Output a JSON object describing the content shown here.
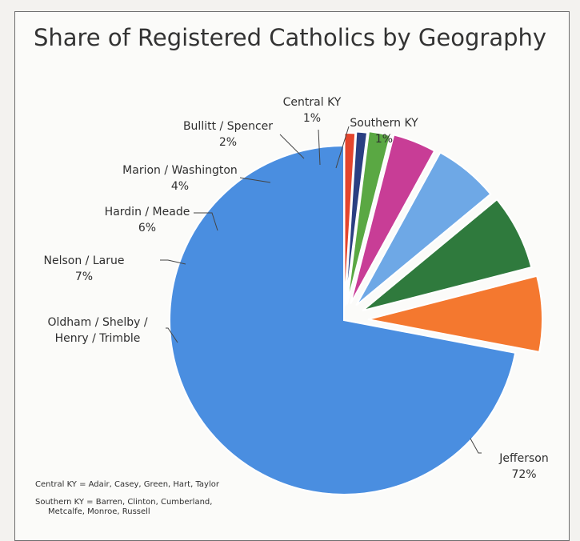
{
  "chart_data": {
    "type": "pie",
    "title": "Share of Registered Catholics by Geography",
    "slices": [
      {
        "name": "Jefferson",
        "label_lines": [
          "Jefferson",
          "72%"
        ],
        "value": 72,
        "color": "#4a8ee0"
      },
      {
        "name": "Oldham / Shelby / Henry / Trimble",
        "label_lines": [
          "Oldham / Shelby /",
          "Henry / Trimble"
        ],
        "value": 7,
        "color": "#f4782f"
      },
      {
        "name": "Nelson / Larue",
        "label_lines": [
          "Nelson / Larue",
          "7%"
        ],
        "value": 7,
        "color": "#2f7a3d"
      },
      {
        "name": "Hardin / Meade",
        "label_lines": [
          "Hardin / Meade",
          "6%"
        ],
        "value": 6,
        "color": "#6ea8e6"
      },
      {
        "name": "Marion / Washington",
        "label_lines": [
          "Marion / Washington",
          "4%"
        ],
        "value": 4,
        "color": "#c83d96"
      },
      {
        "name": "Bullitt / Spencer",
        "label_lines": [
          "Bullitt / Spencer",
          "2%"
        ],
        "value": 2,
        "color": "#5aa843"
      },
      {
        "name": "Central KY",
        "label_lines": [
          "Central KY",
          "1%"
        ],
        "value": 1,
        "color": "#2a3f82"
      },
      {
        "name": "Southern KY",
        "label_lines": [
          "Southern KY",
          "1%"
        ],
        "value": 1,
        "color": "#e4452d"
      }
    ],
    "legend": "none",
    "footnotes": [
      "Central KY = Adair, Casey, Green, Hart, Taylor",
      "Southern KY = Barren, Clinton, Cumberland,",
      "Metcalfe, Monroe, Russell"
    ]
  }
}
